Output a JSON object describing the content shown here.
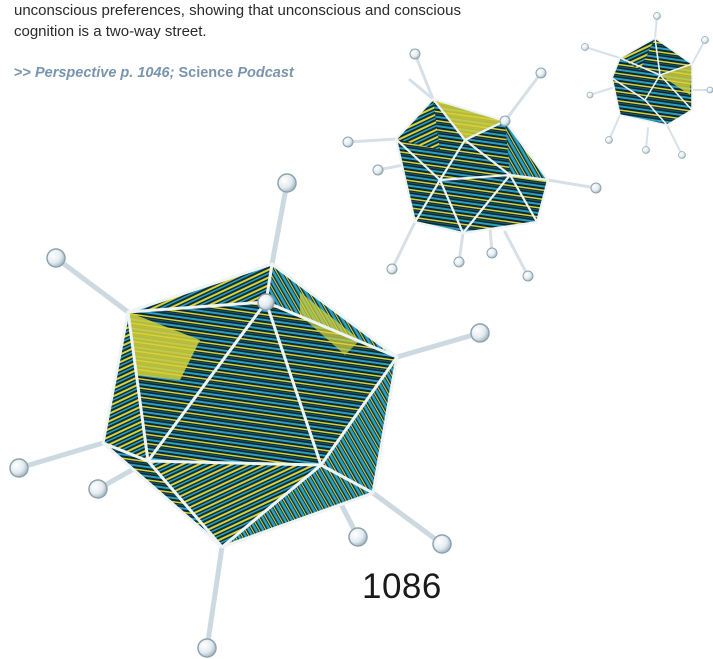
{
  "article": {
    "intro_line1": "unconscious preferences, showing that unconscious and conscious",
    "intro_line2": "cognition is a two-way street."
  },
  "crossref": {
    "prefix": ">> ",
    "perspective": "Perspective p. 1046;",
    "journal": "Science",
    "podcast": "Podcast"
  },
  "page_number": "1086",
  "illustration": {
    "subject": "three polyhedral molecule models (icosahedral cages) with ball-and-stick bonds",
    "palette": {
      "yellow": "#d7d23a",
      "cyan": "#2b9fbf",
      "dark": "#0d2830",
      "bond": "#dfe8ee"
    }
  }
}
